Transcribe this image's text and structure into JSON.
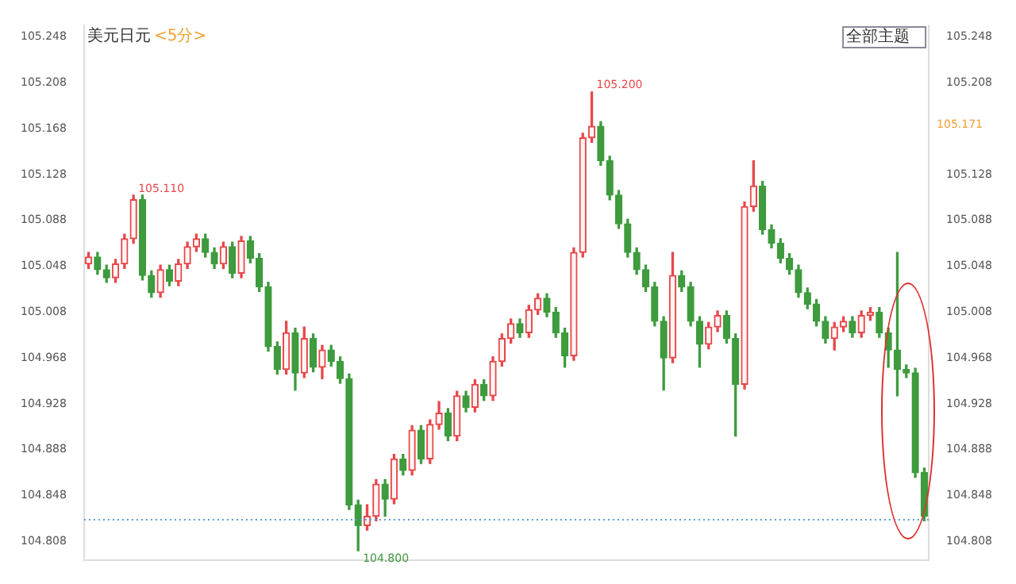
{
  "chart_data": {
    "type": "candlestick",
    "title": "美元日元",
    "subtitle": "<5分>",
    "categories": [
      null,
      null,
      null,
      null,
      null,
      null,
      null,
      null,
      null,
      null,
      null,
      null,
      null,
      null,
      null,
      null,
      null,
      null,
      null,
      null,
      null,
      null,
      null,
      null,
      null,
      null,
      null,
      null,
      null,
      null,
      null,
      null,
      null,
      null,
      null,
      null,
      null,
      null,
      null,
      null,
      null,
      null,
      null,
      null,
      null,
      null,
      null,
      null,
      null,
      null,
      null,
      null,
      null,
      null,
      null,
      null,
      null,
      null,
      null,
      null,
      null,
      null,
      null,
      null,
      null,
      null,
      null,
      null,
      null,
      null,
      null,
      null,
      null,
      null,
      null,
      null,
      null,
      null,
      null,
      null,
      null,
      null,
      null,
      null,
      null,
      null,
      null,
      null,
      null,
      null,
      null,
      null,
      null,
      null
    ],
    "ohlc": [
      [
        105.05,
        105.06,
        105.046,
        105.056
      ],
      [
        105.056,
        105.06,
        105.041,
        105.045
      ],
      [
        105.045,
        105.049,
        105.034,
        105.038
      ],
      [
        105.038,
        105.054,
        105.034,
        105.05
      ],
      [
        105.05,
        105.076,
        105.046,
        105.072
      ],
      [
        105.072,
        105.11,
        105.068,
        105.106
      ],
      [
        105.106,
        105.11,
        105.036,
        105.04
      ],
      [
        105.04,
        105.044,
        105.021,
        105.025
      ],
      [
        105.025,
        105.049,
        105.021,
        105.045
      ],
      [
        105.045,
        105.049,
        105.031,
        105.035
      ],
      [
        105.035,
        105.054,
        105.031,
        105.05
      ],
      [
        105.05,
        105.069,
        105.046,
        105.065
      ],
      [
        105.065,
        105.076,
        105.061,
        105.072
      ],
      [
        105.072,
        105.076,
        105.056,
        105.06
      ],
      [
        105.06,
        105.064,
        105.046,
        105.05
      ],
      [
        105.05,
        105.069,
        105.046,
        105.065
      ],
      [
        105.065,
        105.069,
        105.038,
        105.042
      ],
      [
        105.042,
        105.074,
        105.038,
        105.07
      ],
      [
        105.07,
        105.074,
        105.051,
        105.055
      ],
      [
        105.055,
        105.059,
        105.026,
        105.03
      ],
      [
        105.03,
        105.034,
        104.974,
        104.978
      ],
      [
        104.978,
        104.982,
        104.954,
        104.958
      ],
      [
        104.958,
        105.0,
        104.954,
        104.99
      ],
      [
        104.99,
        104.994,
        104.94,
        104.955
      ],
      [
        104.955,
        104.995,
        104.951,
        104.985
      ],
      [
        104.985,
        104.989,
        104.956,
        104.96
      ],
      [
        104.96,
        104.979,
        104.95,
        104.975
      ],
      [
        104.975,
        104.979,
        104.961,
        104.965
      ],
      [
        104.965,
        104.969,
        104.946,
        104.95
      ],
      [
        104.95,
        104.954,
        104.836,
        104.84
      ],
      [
        104.84,
        104.844,
        104.8,
        104.822
      ],
      [
        104.822,
        104.84,
        104.818,
        104.83
      ],
      [
        104.83,
        104.862,
        104.826,
        104.858
      ],
      [
        104.858,
        104.862,
        104.83,
        104.845
      ],
      [
        104.845,
        104.884,
        104.841,
        104.88
      ],
      [
        104.88,
        104.884,
        104.866,
        104.87
      ],
      [
        104.87,
        104.909,
        104.866,
        104.905
      ],
      [
        104.905,
        104.909,
        104.876,
        104.88
      ],
      [
        104.88,
        104.914,
        104.876,
        104.91
      ],
      [
        104.91,
        104.93,
        104.906,
        104.92
      ],
      [
        104.92,
        104.924,
        104.896,
        104.9
      ],
      [
        104.9,
        104.939,
        104.896,
        104.935
      ],
      [
        104.935,
        104.939,
        104.921,
        104.925
      ],
      [
        104.925,
        104.949,
        104.921,
        104.945
      ],
      [
        104.945,
        104.949,
        104.931,
        104.935
      ],
      [
        104.935,
        104.969,
        104.931,
        104.965
      ],
      [
        104.965,
        104.989,
        104.961,
        104.985
      ],
      [
        104.985,
        105.002,
        104.981,
        104.998
      ],
      [
        104.998,
        105.002,
        104.986,
        104.99
      ],
      [
        104.99,
        105.014,
        104.986,
        105.01
      ],
      [
        105.01,
        105.024,
        105.006,
        105.02
      ],
      [
        105.02,
        105.024,
        105.004,
        105.008
      ],
      [
        105.008,
        105.012,
        104.986,
        104.99
      ],
      [
        104.99,
        104.994,
        104.96,
        104.97
      ],
      [
        104.97,
        105.064,
        104.966,
        105.06
      ],
      [
        105.06,
        105.164,
        105.056,
        105.16
      ],
      [
        105.16,
        105.2,
        105.156,
        105.17
      ],
      [
        105.17,
        105.174,
        105.136,
        105.14
      ],
      [
        105.14,
        105.144,
        105.106,
        105.11
      ],
      [
        105.11,
        105.114,
        105.081,
        105.085
      ],
      [
        105.085,
        105.089,
        105.056,
        105.06
      ],
      [
        105.06,
        105.064,
        105.041,
        105.045
      ],
      [
        105.045,
        105.049,
        105.026,
        105.03
      ],
      [
        105.03,
        105.034,
        104.996,
        105.0
      ],
      [
        105.0,
        105.004,
        104.94,
        104.968
      ],
      [
        104.968,
        105.06,
        104.964,
        105.04
      ],
      [
        105.04,
        105.044,
        105.026,
        105.03
      ],
      [
        105.03,
        105.034,
        104.996,
        105.0
      ],
      [
        105.0,
        105.004,
        104.96,
        104.98
      ],
      [
        104.98,
        104.999,
        104.976,
        104.995
      ],
      [
        104.995,
        105.009,
        104.991,
        105.005
      ],
      [
        105.005,
        105.009,
        104.981,
        104.985
      ],
      [
        104.985,
        104.989,
        104.9,
        104.945
      ],
      [
        104.945,
        105.104,
        104.941,
        105.1
      ],
      [
        105.1,
        105.14,
        105.096,
        105.118
      ],
      [
        105.118,
        105.122,
        105.076,
        105.08
      ],
      [
        105.08,
        105.084,
        105.064,
        105.068
      ],
      [
        105.068,
        105.072,
        105.051,
        105.055
      ],
      [
        105.055,
        105.059,
        105.041,
        105.045
      ],
      [
        105.045,
        105.049,
        105.021,
        105.025
      ],
      [
        105.025,
        105.029,
        105.011,
        105.015
      ],
      [
        105.015,
        105.019,
        104.996,
        105.0
      ],
      [
        105.0,
        105.004,
        104.981,
        104.985
      ],
      [
        104.985,
        104.999,
        104.975,
        104.995
      ],
      [
        104.995,
        105.004,
        104.991,
        105.0
      ],
      [
        105.0,
        105.004,
        104.986,
        104.99
      ],
      [
        104.99,
        105.009,
        104.986,
        105.005
      ],
      [
        105.005,
        105.012,
        105.001,
        105.008
      ],
      [
        105.008,
        105.012,
        104.986,
        104.99
      ],
      [
        104.99,
        104.994,
        104.96,
        104.975
      ],
      [
        104.975,
        105.06,
        104.935,
        104.958
      ],
      [
        104.958,
        104.962,
        104.951,
        104.955
      ],
      [
        104.955,
        104.959,
        104.864,
        104.868
      ],
      [
        104.868,
        104.872,
        104.826,
        104.83
      ]
    ],
    "ylim": [
      104.792,
      105.258
    ],
    "yticks": [
      104.808,
      104.848,
      104.888,
      104.928,
      104.968,
      105.008,
      105.048,
      105.088,
      105.128,
      105.168,
      105.208,
      105.248
    ],
    "y2lim": [
      104.792,
      105.258
    ],
    "y2ticks": [
      104.808,
      104.848,
      104.888,
      104.928,
      104.968,
      105.008,
      105.048,
      105.088,
      105.128,
      105.208,
      105.248
    ],
    "tick_labels": "y",
    "grid": false,
    "legend": false,
    "ref_lines": [
      {
        "axis": "y",
        "value": 104.827,
        "color": "#5b9bd5",
        "line_style": "dotted"
      }
    ],
    "annotations": [
      "全部主题",
      "105.110",
      "105.200",
      "104.800",
      "105.171"
    ]
  }
}
